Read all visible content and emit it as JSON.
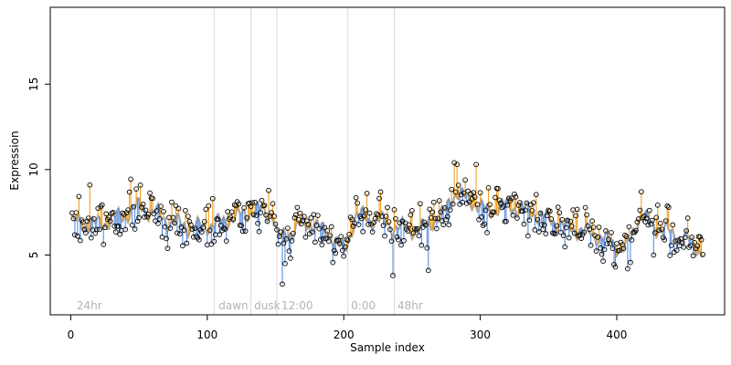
{
  "chart_data": {
    "type": "scatter",
    "title": "",
    "xlabel": "Sample index",
    "ylabel": "Expression",
    "xlim": [
      -15,
      479
    ],
    "ylim": [
      1.5,
      19.5
    ],
    "xticks": [
      0,
      100,
      200,
      300,
      400
    ],
    "yticks": [
      5,
      10,
      15
    ],
    "grid": false,
    "colors": {
      "above_fit": "#f0a020",
      "below_fit": "#5b8fe0",
      "fit_line": "#a6a6a6",
      "point_edge": "#000000",
      "divider": "#d9d9d9",
      "region_text": "#b3b3b3"
    },
    "region_labels": [
      {
        "text": "24hr",
        "x": 3
      },
      {
        "text": "dawn",
        "x": 107
      },
      {
        "text": "dusk",
        "x": 133
      },
      {
        "text": "12:00",
        "x": 153
      },
      {
        "text": "0:00",
        "x": 204
      },
      {
        "text": "48hr",
        "x": 238
      }
    ],
    "dividers": [
      105,
      132,
      151,
      203,
      237
    ],
    "fit_anchors": [
      {
        "x": 0,
        "y": 6.9
      },
      {
        "x": 20,
        "y": 6.8
      },
      {
        "x": 35,
        "y": 7.2
      },
      {
        "x": 50,
        "y": 7.8
      },
      {
        "x": 60,
        "y": 7.5
      },
      {
        "x": 75,
        "y": 6.9
      },
      {
        "x": 90,
        "y": 6.6
      },
      {
        "x": 105,
        "y": 6.8
      },
      {
        "x": 120,
        "y": 7.2
      },
      {
        "x": 135,
        "y": 7.6
      },
      {
        "x": 148,
        "y": 7.4
      },
      {
        "x": 152,
        "y": 5.9
      },
      {
        "x": 160,
        "y": 6.4
      },
      {
        "x": 175,
        "y": 6.9
      },
      {
        "x": 190,
        "y": 6.2
      },
      {
        "x": 200,
        "y": 5.3
      },
      {
        "x": 210,
        "y": 7.3
      },
      {
        "x": 225,
        "y": 7.0
      },
      {
        "x": 240,
        "y": 6.6
      },
      {
        "x": 255,
        "y": 6.5
      },
      {
        "x": 270,
        "y": 7.2
      },
      {
        "x": 282,
        "y": 8.6
      },
      {
        "x": 292,
        "y": 8.2
      },
      {
        "x": 305,
        "y": 7.6
      },
      {
        "x": 320,
        "y": 7.9
      },
      {
        "x": 335,
        "y": 7.6
      },
      {
        "x": 350,
        "y": 7.1
      },
      {
        "x": 365,
        "y": 6.6
      },
      {
        "x": 380,
        "y": 6.3
      },
      {
        "x": 395,
        "y": 5.8
      },
      {
        "x": 405,
        "y": 5.3
      },
      {
        "x": 418,
        "y": 7.2
      },
      {
        "x": 430,
        "y": 6.6
      },
      {
        "x": 445,
        "y": 6.1
      },
      {
        "x": 463,
        "y": 5.3
      }
    ],
    "point_count": 463,
    "random_seed": 7,
    "noise_sd": 0.75,
    "outliers": [
      {
        "x": 14,
        "y": 9.1
      },
      {
        "x": 104,
        "y": 8.3
      },
      {
        "x": 155,
        "y": 3.3
      },
      {
        "x": 157,
        "y": 4.5
      },
      {
        "x": 236,
        "y": 3.8
      },
      {
        "x": 262,
        "y": 4.1
      },
      {
        "x": 281,
        "y": 10.4
      },
      {
        "x": 283,
        "y": 10.3
      },
      {
        "x": 297,
        "y": 10.3
      },
      {
        "x": 399,
        "y": 4.3
      },
      {
        "x": 418,
        "y": 8.7
      }
    ]
  }
}
